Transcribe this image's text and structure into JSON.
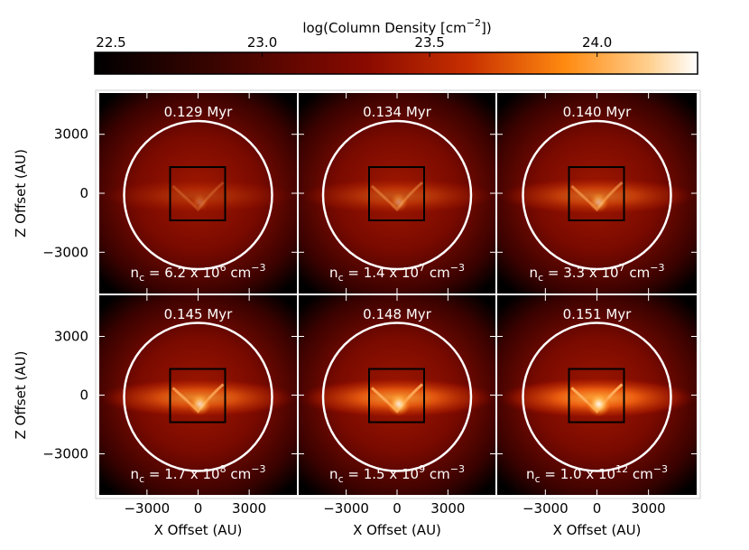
{
  "chart_data": {
    "type": "image-grid",
    "colorbar": {
      "title": {
        "text": "log(Column Density [cm",
        "exponent": "−2",
        "close": "])"
      },
      "lim": [
        22.5,
        24.3
      ],
      "ticks": [
        22.5,
        {
          "value": 23,
          "label": "23.0"
        },
        23.5,
        {
          "value": 24,
          "label": "24.0"
        }
      ]
    },
    "xlabel": "X Offset (AU)",
    "ylabel": "Z Offset (AU)",
    "xlim": [
      -5800,
      5800
    ],
    "ylim": [
      -5100,
      5100
    ],
    "xticks": [
      {
        "value": -3000,
        "label": "−3000"
      },
      0,
      3000
    ],
    "yticks": [
      3000,
      0,
      {
        "value": -3000,
        "label": "−3000"
      }
    ],
    "panels": [
      {
        "time": "0.129 Myr",
        "density": {
          "symbol": "n",
          "subscript": "c",
          "mantissa": " = 6.2 x 10",
          "exponent": "6",
          "unit": " cm",
          "unit_exponent": "−3"
        }
      },
      {
        "time": "0.134 Myr",
        "density": {
          "symbol": "n",
          "subscript": "c",
          "mantissa": " = 1.4 x 10",
          "exponent": "7",
          "unit": " cm",
          "unit_exponent": "−3"
        }
      },
      {
        "time": "0.140 Myr",
        "density": {
          "symbol": "n",
          "subscript": "c",
          "mantissa": " = 3.3 x 10",
          "exponent": "7",
          "unit": " cm",
          "unit_exponent": "−3"
        }
      },
      {
        "time": "0.145 Myr",
        "density": {
          "symbol": "n",
          "subscript": "c",
          "mantissa": " = 1.7 x 10",
          "exponent": "8",
          "unit": " cm",
          "unit_exponent": "−3"
        }
      },
      {
        "time": "0.148 Myr",
        "density": {
          "symbol": "n",
          "subscript": "c",
          "mantissa": " = 1.5 x 10",
          "exponent": "9",
          "unit": " cm",
          "unit_exponent": "−3"
        }
      },
      {
        "time": "0.151 Myr",
        "density": {
          "symbol": "n",
          "subscript": "c",
          "mantissa": " = 1.0 x 10",
          "exponent": "12",
          "unit": " cm",
          "unit_exponent": "−3"
        }
      }
    ]
  }
}
